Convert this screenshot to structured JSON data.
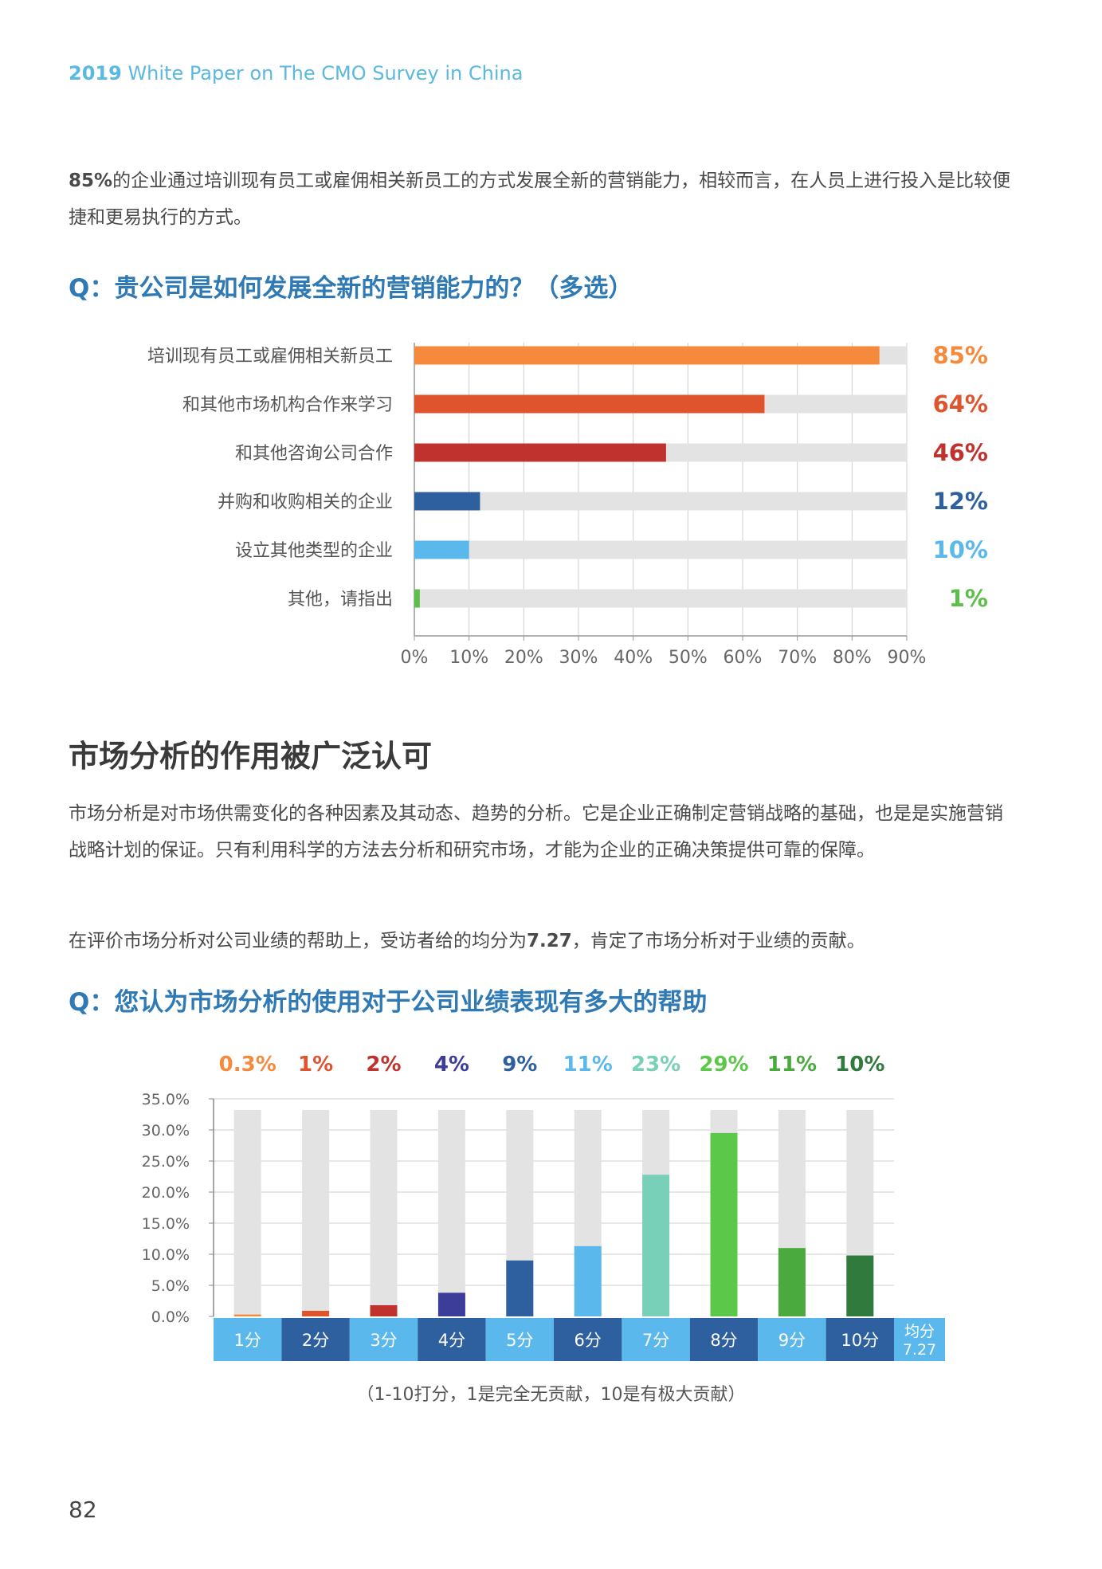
{
  "header": {
    "year": "2019",
    "title": "White Paper on The CMO Survey in China"
  },
  "intro": {
    "highlight": "85%",
    "text": "的企业通过培训现有员工或雇佣相关新员工的方式发展全新的营销能力，相较而言，在人员上进行投入是比较便捷和更易执行的方式。"
  },
  "q1": "Q：贵公司是如何发展全新的营销能力的？（多选）",
  "section": {
    "title": "市场分析的作用被广泛认可",
    "para1": "市场分析是对市场供需变化的各种因素及其动态、趋势的分析。它是企业正确制定营销战略的基础，也是是实施营销战略计划的保证。只有利用科学的方法去分析和研究市场，才能为企业的正确决策提供可靠的保障。",
    "para2_before": "在评价市场分析对公司业绩的帮助上，受访者给的均分为",
    "para2_value": "7.27",
    "para2_after": "，肯定了市场分析对于业绩的贡献。"
  },
  "q2": "Q：您认为市场分析的使用对于公司业绩表现有多大的帮助",
  "footnote": "（1-10打分，1是完全无贡献，10是有极大贡献）",
  "page_number": "82",
  "chart_data": [
    {
      "type": "bar",
      "orientation": "horizontal",
      "categories": [
        "培训现有员工或雇佣相关新员工",
        "和其他市场机构合作来学习",
        "和其他咨询公司合作",
        "并购和收购相关的企业",
        "设立其他类型的企业",
        "其他，请指出"
      ],
      "values": [
        85,
        64,
        46,
        12,
        10,
        1
      ],
      "value_labels": [
        "85%",
        "64%",
        "46%",
        "12%",
        "10%",
        "1%"
      ],
      "colors": [
        "#f58a3c",
        "#e0542d",
        "#c0322e",
        "#2e5f9e",
        "#5bb8ec",
        "#5cbf4a"
      ],
      "xlim": [
        0,
        90
      ],
      "xticks": [
        "0%",
        "10%",
        "20%",
        "30%",
        "40%",
        "50%",
        "60%",
        "70%",
        "80%",
        "90%"
      ],
      "track_color": "#e3e3e3"
    },
    {
      "type": "bar",
      "orientation": "vertical",
      "categories": [
        "1分",
        "2分",
        "3分",
        "4分",
        "5分",
        "6分",
        "7分",
        "8分",
        "9分",
        "10分"
      ],
      "values": [
        0.3,
        1,
        2,
        4,
        9,
        11,
        23,
        29,
        11,
        10
      ],
      "bar_heights": [
        0.3,
        0.9,
        1.8,
        3.8,
        9.0,
        11.3,
        22.8,
        29.5,
        11.0,
        9.8
      ],
      "value_labels": [
        "0.3%",
        "1%",
        "2%",
        "4%",
        "9%",
        "11%",
        "23%",
        "29%",
        "11%",
        "10%"
      ],
      "colors": [
        "#f58a3c",
        "#e0542d",
        "#c0322e",
        "#3b3d99",
        "#2e5f9e",
        "#5bb8ec",
        "#79d0b8",
        "#5cc84a",
        "#4aaa3e",
        "#2f7a3c"
      ],
      "ylim": [
        0,
        35
      ],
      "yticks": [
        "0.0%",
        "5.0%",
        "10.0%",
        "15.0%",
        "20.0%",
        "25.0%",
        "30.0%",
        "35.0%"
      ],
      "track_color": "#e3e3e3",
      "axis_row_colors": [
        "#5bb8ec",
        "#2e5f9e"
      ],
      "average_label": "均分",
      "average_value": "7.27"
    }
  ]
}
